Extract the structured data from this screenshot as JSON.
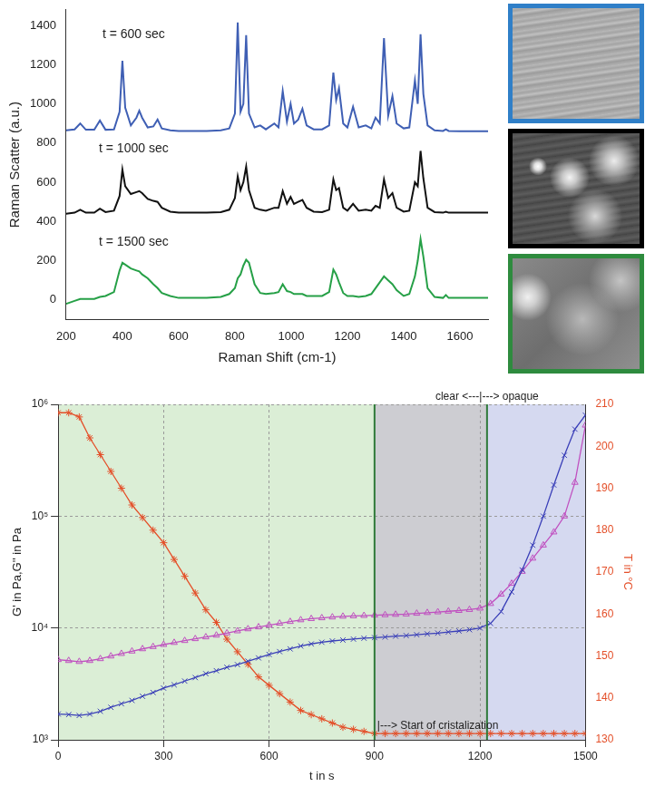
{
  "chart_data": [
    {
      "type": "line",
      "x_label": "Raman Shift (cm-1)",
      "y_label": "Raman Scatter (a.u.)",
      "xlim": [
        200,
        1700
      ],
      "xticks": [
        200,
        400,
        600,
        800,
        1000,
        1200,
        1400,
        1600
      ],
      "ylim": [
        -100,
        1480
      ],
      "yticks": [
        0,
        200,
        400,
        600,
        800,
        1000,
        1200,
        1400
      ],
      "grid": false,
      "x": [
        200,
        230,
        250,
        270,
        300,
        320,
        340,
        370,
        390,
        400,
        410,
        430,
        450,
        460,
        470,
        490,
        510,
        525,
        540,
        570,
        600,
        650,
        700,
        750,
        780,
        800,
        810,
        820,
        830,
        840,
        850,
        870,
        890,
        910,
        940,
        955,
        970,
        985,
        998,
        1010,
        1025,
        1040,
        1055,
        1080,
        1110,
        1135,
        1150,
        1160,
        1170,
        1185,
        1200,
        1220,
        1240,
        1265,
        1285,
        1300,
        1315,
        1330,
        1345,
        1360,
        1375,
        1400,
        1420,
        1440,
        1450,
        1460,
        1470,
        1485,
        1510,
        1540,
        1550,
        1560,
        1600,
        1650,
        1700
      ],
      "series": [
        {
          "color": "#3f5fb4",
          "values": [
            865,
            870,
            900,
            868,
            868,
            915,
            868,
            870,
            960,
            1220,
            980,
            890,
            930,
            965,
            930,
            880,
            885,
            920,
            875,
            865,
            862,
            862,
            862,
            865,
            875,
            950,
            1415,
            960,
            1000,
            1350,
            950,
            880,
            890,
            870,
            900,
            880,
            1065,
            910,
            1000,
            900,
            920,
            975,
            890,
            870,
            870,
            890,
            1160,
            1020,
            1080,
            900,
            880,
            985,
            880,
            890,
            875,
            930,
            900,
            1335,
            940,
            1040,
            900,
            875,
            880,
            1120,
            1000,
            1355,
            1050,
            890,
            865,
            862,
            870,
            862,
            860,
            860,
            860
          ]
        },
        {
          "color": "#111111",
          "values": [
            440,
            445,
            460,
            445,
            445,
            465,
            448,
            455,
            530,
            665,
            580,
            540,
            550,
            555,
            545,
            515,
            505,
            500,
            470,
            450,
            445,
            445,
            445,
            448,
            460,
            520,
            630,
            560,
            600,
            680,
            560,
            470,
            460,
            455,
            470,
            470,
            555,
            490,
            525,
            490,
            500,
            510,
            470,
            450,
            448,
            460,
            615,
            560,
            570,
            470,
            455,
            490,
            455,
            460,
            455,
            480,
            470,
            615,
            520,
            545,
            470,
            450,
            455,
            600,
            580,
            760,
            620,
            470,
            448,
            445,
            450,
            445,
            445,
            445,
            445
          ]
        },
        {
          "color": "#26a047",
          "values": [
            -20,
            -5,
            5,
            5,
            5,
            15,
            20,
            40,
            150,
            190,
            180,
            160,
            150,
            145,
            130,
            110,
            80,
            60,
            35,
            20,
            10,
            10,
            10,
            15,
            30,
            60,
            110,
            130,
            175,
            205,
            190,
            80,
            35,
            30,
            35,
            40,
            80,
            45,
            40,
            30,
            30,
            30,
            20,
            20,
            20,
            40,
            155,
            130,
            90,
            35,
            20,
            20,
            15,
            20,
            30,
            60,
            90,
            120,
            100,
            80,
            50,
            20,
            30,
            120,
            200,
            310,
            220,
            60,
            15,
            10,
            25,
            10,
            10,
            10,
            10
          ]
        }
      ],
      "annotations": [
        {
          "text": "t = 600 sec",
          "x": 440,
          "y": 1310,
          "align": "center"
        },
        {
          "text": "t = 1000 sec",
          "x": 440,
          "y": 730,
          "align": "center"
        },
        {
          "text": "t = 1500 sec",
          "x": 440,
          "y": 255,
          "align": "center"
        }
      ]
    },
    {
      "type": "line",
      "log": "y",
      "x_label": "t in s",
      "y_label": "G' in Pa,G'' in Pa",
      "y2_label": "T in °C",
      "xlim": [
        0,
        1500
      ],
      "xticks": [
        0,
        300,
        600,
        900,
        1200,
        1500
      ],
      "ylim": [
        1000,
        1000000
      ],
      "yticks": [
        {
          "value": 1000,
          "label": "10³"
        },
        {
          "value": 10000,
          "label": "10⁴"
        },
        {
          "value": 100000,
          "label": "10⁵"
        },
        {
          "value": 1000000,
          "label": "10⁶"
        }
      ],
      "y2lim": [
        130,
        210
      ],
      "y2ticks": [
        130,
        140,
        150,
        160,
        170,
        180,
        190,
        200,
        210
      ],
      "grid": true,
      "x": [
        0,
        30,
        60,
        90,
        120,
        150,
        180,
        210,
        240,
        270,
        300,
        330,
        360,
        390,
        420,
        450,
        480,
        510,
        540,
        570,
        600,
        630,
        660,
        690,
        720,
        750,
        780,
        810,
        840,
        870,
        900,
        930,
        960,
        990,
        1020,
        1050,
        1080,
        1110,
        1140,
        1170,
        1200,
        1230,
        1260,
        1290,
        1320,
        1350,
        1380,
        1410,
        1440,
        1470,
        1500
      ],
      "series": [
        {
          "color": "#3a3fb8",
          "marker": "x",
          "values": [
            1700,
            1680,
            1650,
            1700,
            1800,
            1950,
            2100,
            2250,
            2450,
            2650,
            2900,
            3100,
            3350,
            3600,
            3900,
            4150,
            4450,
            4700,
            5050,
            5400,
            5800,
            6150,
            6500,
            6900,
            7200,
            7450,
            7650,
            7800,
            7950,
            8100,
            8200,
            8300,
            8450,
            8550,
            8700,
            8850,
            9000,
            9200,
            9400,
            9650,
            10000,
            11000,
            14000,
            21000,
            33000,
            55000,
            100000,
            190000,
            350000,
            600000,
            800000
          ]
        },
        {
          "color": "#c050c0",
          "marker": "triangle",
          "values": [
            5200,
            5100,
            5000,
            5100,
            5300,
            5600,
            5900,
            6200,
            6500,
            6800,
            7100,
            7400,
            7700,
            8000,
            8300,
            8600,
            9000,
            9400,
            9800,
            10200,
            10600,
            11000,
            11400,
            11800,
            12100,
            12300,
            12500,
            12700,
            12800,
            12900,
            13000,
            13100,
            13200,
            13300,
            13500,
            13700,
            13900,
            14100,
            14300,
            14600,
            15000,
            16500,
            20000,
            25000,
            32000,
            42000,
            55000,
            72000,
            100000,
            200000,
            650000
          ]
        },
        {
          "color": "#e4502a",
          "marker": "star",
          "axis": "y2",
          "values": [
            208,
            208,
            207,
            202,
            198,
            194,
            190,
            186,
            183,
            180,
            177,
            173,
            169,
            165,
            161,
            158,
            154,
            151,
            148,
            145,
            143,
            141,
            139,
            137,
            136,
            135,
            134,
            133,
            132.5,
            132,
            131.5,
            131.5,
            131.5,
            131.5,
            131.5,
            131.5,
            131.5,
            131.5,
            131.5,
            131.5,
            131.5,
            131.5,
            131.5,
            131.5,
            131.5,
            131.5,
            131.5,
            131.5,
            131.5,
            131.5,
            131.5
          ]
        }
      ],
      "regions": [
        {
          "from": 0,
          "to": 900,
          "color": "#dbeed6"
        },
        {
          "from": 900,
          "to": 1220,
          "color": "#cdcdd2"
        },
        {
          "from": 1220,
          "to": 1500,
          "color": "#d5d9f0"
        }
      ],
      "vlines": [
        900,
        1220
      ],
      "annotations": [
        {
          "text": "clear <---|---> opaque",
          "x": 1220,
          "y": 1000000,
          "align": "center"
        },
        {
          "text": "|---> Start of cristalization",
          "x": 900,
          "y": 1150,
          "align": "left"
        }
      ]
    }
  ]
}
